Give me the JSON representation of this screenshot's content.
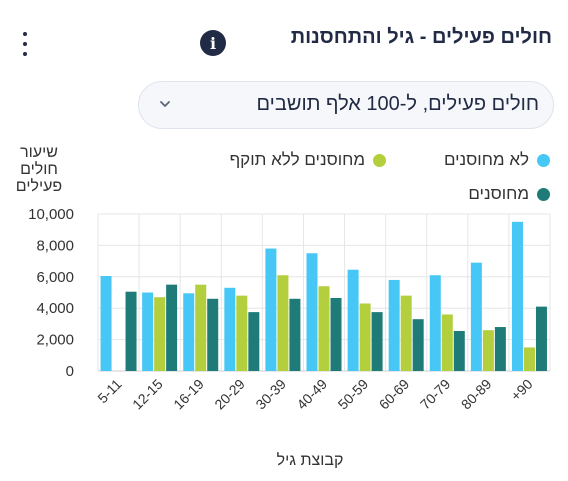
{
  "header": {
    "title": "חולים פעילים - גיל והתחסנות",
    "info_icon": "info-icon",
    "info_glyph": "i",
    "menu_icon": "kebab-menu-icon"
  },
  "selector": {
    "value": "חולים פעילים, ל-100 אלף תושבים",
    "icon": "chevron-down-icon"
  },
  "colors": {
    "not_vaccinated": "#47c7f5",
    "vaccinated_expired": "#b3cf3d",
    "vaccinated": "#1e7b77",
    "grid": "#e6e6e6",
    "axis_text": "#333333"
  },
  "chart_data": {
    "type": "bar",
    "ylabel": "שיעור חולים פעילים",
    "xlabel": "קבוצת גיל",
    "ylim": [
      0,
      10000
    ],
    "yticks": [
      0,
      2000,
      4000,
      6000,
      8000,
      10000
    ],
    "ytick_labels": [
      "0",
      "2,000",
      "4,000",
      "6,000",
      "8,000",
      "10,000"
    ],
    "grid": true,
    "legend_position": "top",
    "categories": [
      "5-11",
      "12-15",
      "16-19",
      "20-29",
      "30-39",
      "40-49",
      "50-59",
      "60-69",
      "70-79",
      "80-89",
      "+90"
    ],
    "series": [
      {
        "name": "לא מחוסנים",
        "values": [
          6050,
          5000,
          4950,
          5300,
          7800,
          7500,
          6450,
          5800,
          6100,
          6900,
          9500
        ]
      },
      {
        "name": "מחוסנים ללא תוקף",
        "values": [
          null,
          4700,
          5500,
          4800,
          6100,
          5400,
          4300,
          4800,
          3600,
          2600,
          1500
        ]
      },
      {
        "name": "מחוסנים",
        "values": [
          5050,
          5500,
          4600,
          3750,
          4600,
          4650,
          3750,
          3300,
          2550,
          2800,
          4100
        ]
      }
    ]
  }
}
